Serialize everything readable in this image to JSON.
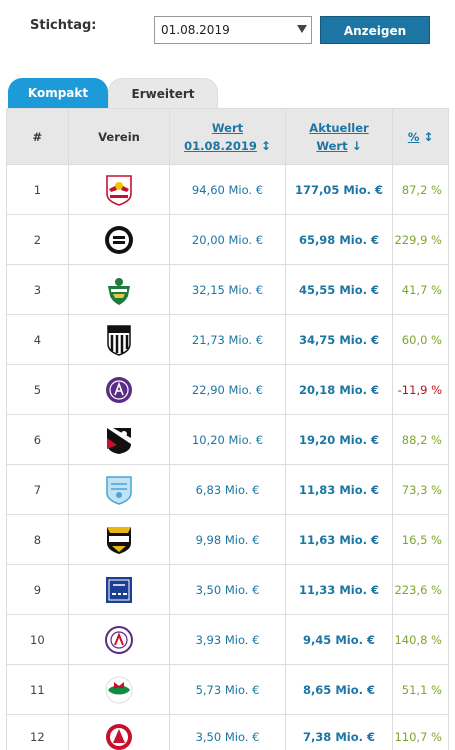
{
  "filter": {
    "label": "Stichtag:",
    "date_value": "01.08.2019",
    "show_label": "Anzeigen"
  },
  "tabs": [
    {
      "label": "Kompakt",
      "active": true
    },
    {
      "label": "Erweitert",
      "active": false
    }
  ],
  "table": {
    "headers": {
      "rank": "#",
      "club": "Verein",
      "value_line1": "Wert",
      "value_line2": "01.08.2019",
      "current_line1": "Aktueller",
      "current_line2": "Wert",
      "percent": "%"
    },
    "sort_icons": {
      "value": "sort-both-icon",
      "current": "sort-down-icon",
      "percent": "sort-both-icon"
    },
    "rows": [
      {
        "rank": "1",
        "crest": "red-bull-salzburg-crest",
        "value": "94,60 Mio. €",
        "current": "177,05 Mio. €",
        "percent": "87,2 %",
        "negative": false
      },
      {
        "rank": "2",
        "crest": "sturm-graz-crest",
        "value": "20,00 Mio. €",
        "current": "65,98 Mio. €",
        "percent": "229,9 %",
        "negative": false
      },
      {
        "rank": "3",
        "crest": "rapid-wien-crest",
        "value": "32,15 Mio. €",
        "current": "45,55 Mio. €",
        "percent": "41,7 %",
        "negative": false
      },
      {
        "rank": "4",
        "crest": "lask-crest",
        "value": "21,73 Mio. €",
        "current": "34,75 Mio. €",
        "percent": "60,0 %",
        "negative": false
      },
      {
        "rank": "5",
        "crest": "austria-wien-crest",
        "value": "22,90 Mio. €",
        "current": "20,18 Mio. €",
        "percent": "-11,9 %",
        "negative": true
      },
      {
        "rank": "6",
        "crest": "wolfsberger-ac-crest",
        "value": "10,20 Mio. €",
        "current": "19,20 Mio. €",
        "percent": "88,2 %",
        "negative": false
      },
      {
        "rank": "7",
        "crest": "tsv-hartberg-crest",
        "value": "6,83 Mio. €",
        "current": "11,83 Mio. €",
        "percent": "73,3 %",
        "negative": false
      },
      {
        "rank": "8",
        "crest": "scr-altach-crest",
        "value": "9,98 Mio. €",
        "current": "11,63 Mio. €",
        "percent": "16,5 %",
        "negative": false
      },
      {
        "rank": "9",
        "crest": "fc-blau-weiss-linz-crest",
        "value": "3,50 Mio. €",
        "current": "11,33 Mio. €",
        "percent": "223,6 %",
        "negative": false
      },
      {
        "rank": "10",
        "crest": "austria-klagenfurt-crest",
        "value": "3,93 Mio. €",
        "current": "9,45 Mio. €",
        "percent": "140,8 %",
        "negative": false
      },
      {
        "rank": "11",
        "crest": "wsg-tirol-crest",
        "value": "5,73 Mio. €",
        "current": "8,65 Mio. €",
        "percent": "51,1 %",
        "negative": false
      },
      {
        "rank": "12",
        "crest": "austria-lustenau-crest",
        "value": "3,50 Mio. €",
        "current": "7,38 Mio. €",
        "percent": "110,7 %",
        "negative": false
      }
    ]
  },
  "colors": {
    "accent": "#1d75a3",
    "tab_active": "#1d9bd8",
    "positive": "#7fa52f",
    "negative": "#b3131b"
  }
}
